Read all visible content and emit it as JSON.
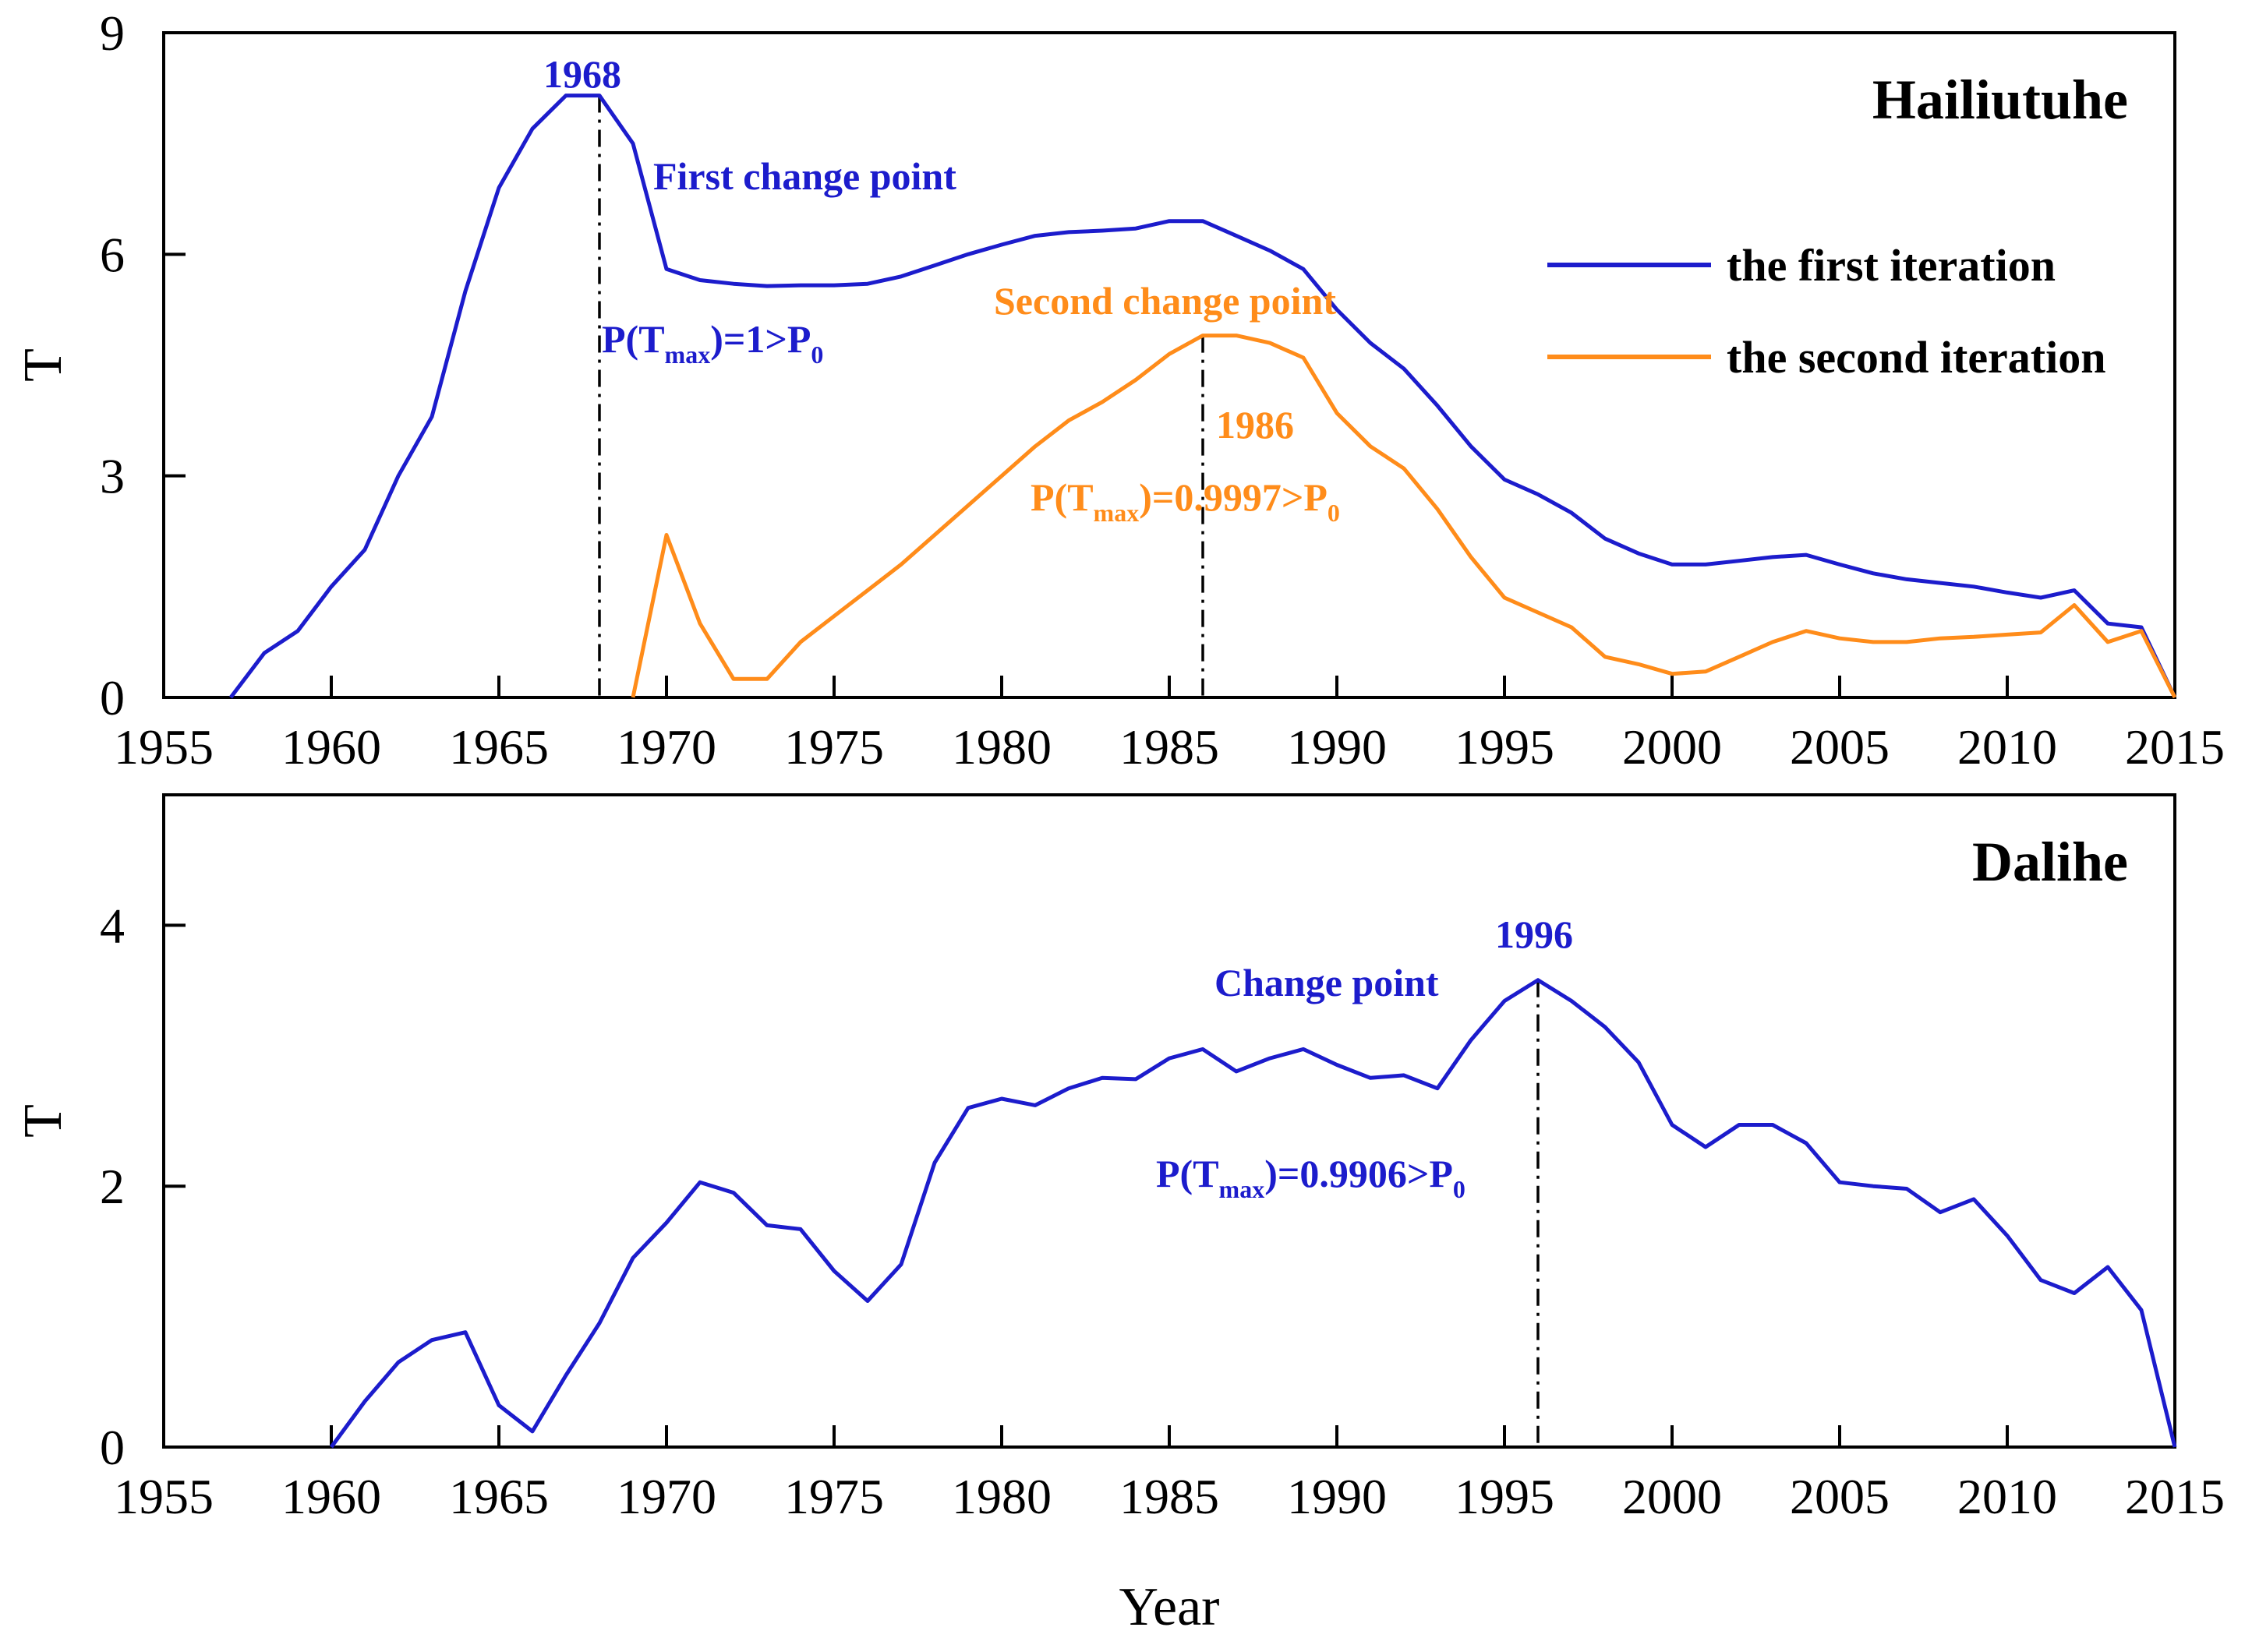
{
  "chart_data": {
    "type": "line",
    "xlabel": "Year",
    "xlim": [
      1955,
      2015
    ],
    "xticks": [
      1955,
      1960,
      1965,
      1970,
      1975,
      1980,
      1985,
      1990,
      1995,
      2000,
      2005,
      2010,
      2015
    ],
    "colors": {
      "first": "#1c1ccc",
      "second": "#ff8c1a",
      "axis": "#000000"
    },
    "panels": [
      {
        "title": "Hailiutuhe",
        "ylabel": "T",
        "ylim": [
          0,
          9
        ],
        "yticks": [
          0,
          3,
          6,
          9
        ],
        "series": [
          {
            "name": "the first iteration",
            "color_key": "first",
            "x": [
              1957,
              1958,
              1959,
              1960,
              1961,
              1962,
              1963,
              1964,
              1965,
              1966,
              1967,
              1968,
              1969,
              1970,
              1971,
              1972,
              1973,
              1974,
              1975,
              1976,
              1977,
              1978,
              1979,
              1980,
              1981,
              1982,
              1983,
              1984,
              1985,
              1986,
              1987,
              1988,
              1989,
              1990,
              1991,
              1992,
              1993,
              1994,
              1995,
              1996,
              1997,
              1998,
              1999,
              2000,
              2001,
              2002,
              2003,
              2004,
              2005,
              2006,
              2007,
              2008,
              2009,
              2010,
              2011,
              2012,
              2013,
              2014,
              2015
            ],
            "y": [
              0,
              0.6,
              0.9,
              1.5,
              2.0,
              3.0,
              3.8,
              5.5,
              6.9,
              7.7,
              8.15,
              8.15,
              7.5,
              5.8,
              5.65,
              5.6,
              5.57,
              5.58,
              5.58,
              5.6,
              5.7,
              5.85,
              6.0,
              6.13,
              6.25,
              6.3,
              6.32,
              6.35,
              6.45,
              6.45,
              6.25,
              6.05,
              5.8,
              5.25,
              4.8,
              4.45,
              3.95,
              3.4,
              2.95,
              2.75,
              2.5,
              2.15,
              1.95,
              1.8,
              1.8,
              1.85,
              1.9,
              1.93,
              1.8,
              1.68,
              1.6,
              1.55,
              1.5,
              1.42,
              1.35,
              1.45,
              1.0,
              0.95,
              0
            ]
          },
          {
            "name": "the second iteration",
            "color_key": "second",
            "x": [
              1969,
              1970,
              1971,
              1972,
              1973,
              1974,
              1975,
              1976,
              1977,
              1978,
              1979,
              1980,
              1981,
              1982,
              1983,
              1984,
              1985,
              1986,
              1987,
              1988,
              1989,
              1990,
              1991,
              1992,
              1993,
              1994,
              1995,
              1996,
              1997,
              1998,
              1999,
              2000,
              2001,
              2002,
              2003,
              2004,
              2005,
              2006,
              2007,
              2008,
              2009,
              2010,
              2011,
              2012,
              2013,
              2014,
              2015
            ],
            "y": [
              0,
              2.2,
              1.0,
              0.25,
              0.25,
              0.75,
              1.1,
              1.45,
              1.8,
              2.2,
              2.6,
              3.0,
              3.4,
              3.75,
              4.0,
              4.3,
              4.65,
              4.9,
              4.9,
              4.8,
              4.6,
              3.85,
              3.4,
              3.1,
              2.55,
              1.9,
              1.35,
              1.15,
              0.95,
              0.55,
              0.45,
              0.32,
              0.35,
              0.55,
              0.75,
              0.9,
              0.8,
              0.75,
              0.75,
              0.8,
              0.82,
              0.85,
              0.88,
              1.25,
              0.75,
              0.9,
              0
            ]
          }
        ],
        "legend": [
          "the first iteration",
          "the second iteration"
        ],
        "change_points": [
          {
            "year": 1968,
            "value": 8.15,
            "color_key": "first"
          },
          {
            "year": 1986,
            "value": 4.9,
            "color_key": "second"
          }
        ],
        "annotations": [
          {
            "text": "1968",
            "color_key": "first"
          },
          {
            "text": "First change point",
            "color_key": "first"
          },
          {
            "text": "P(T",
            "sub": "max",
            "suffix": ")=1>P",
            "sub2": "0",
            "color_key": "first"
          },
          {
            "text": "Second change point",
            "color_key": "second"
          },
          {
            "text": "1986",
            "color_key": "second"
          },
          {
            "text": "P(T",
            "sub": "max",
            "suffix": ")=0.9997>P",
            "sub2": "0",
            "color_key": "second"
          }
        ]
      },
      {
        "title": "Dalihe",
        "ylabel": "T",
        "ylim": [
          0,
          5
        ],
        "yticks": [
          0,
          2,
          4
        ],
        "series": [
          {
            "name": "Dalihe",
            "color_key": "first",
            "x": [
              1960,
              1961,
              1962,
              1963,
              1964,
              1965,
              1966,
              1967,
              1968,
              1969,
              1970,
              1971,
              1972,
              1973,
              1974,
              1975,
              1976,
              1977,
              1978,
              1979,
              1980,
              1981,
              1982,
              1983,
              1984,
              1985,
              1986,
              1987,
              1988,
              1989,
              1990,
              1991,
              1992,
              1993,
              1994,
              1995,
              1996,
              1997,
              1998,
              1999,
              2000,
              2001,
              2002,
              2003,
              2004,
              2005,
              2006,
              2007,
              2008,
              2009,
              2010,
              2011,
              2012,
              2013,
              2014,
              2015
            ],
            "y": [
              0,
              0.35,
              0.65,
              0.82,
              0.88,
              0.32,
              0.12,
              0.55,
              0.95,
              1.45,
              1.72,
              2.03,
              1.95,
              1.7,
              1.67,
              1.35,
              1.12,
              1.4,
              2.18,
              2.6,
              2.67,
              2.62,
              2.75,
              2.83,
              2.82,
              2.98,
              3.05,
              2.88,
              2.98,
              3.05,
              2.93,
              2.83,
              2.85,
              2.75,
              3.12,
              3.42,
              3.58,
              3.42,
              3.22,
              2.95,
              2.47,
              2.3,
              2.47,
              2.47,
              2.33,
              2.03,
              2.0,
              1.98,
              1.8,
              1.9,
              1.62,
              1.28,
              1.18,
              1.38,
              1.05,
              0
            ]
          }
        ],
        "change_points": [
          {
            "year": 1996,
            "value": 3.58,
            "color_key": "first"
          }
        ],
        "annotations": [
          {
            "text": "1996",
            "color_key": "first"
          },
          {
            "text": "Change point",
            "color_key": "first"
          },
          {
            "text": "P(T",
            "sub": "max",
            "suffix": ")=0.9906>P",
            "sub2": "0",
            "color_key": "first"
          }
        ]
      }
    ]
  }
}
